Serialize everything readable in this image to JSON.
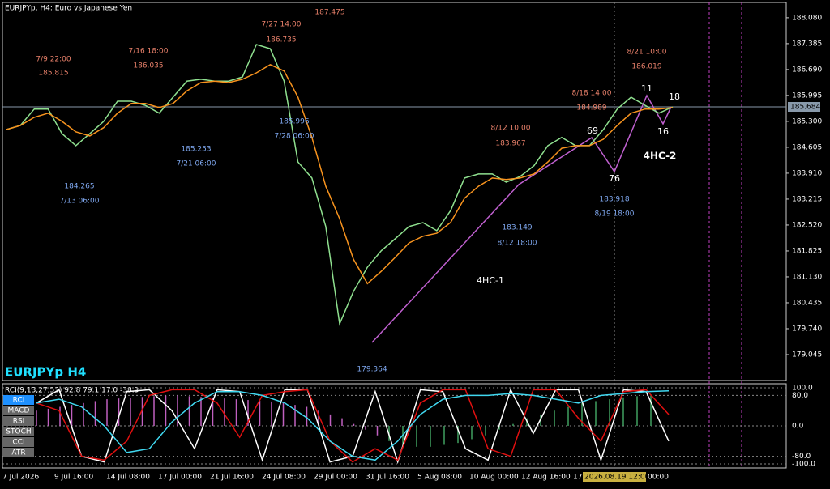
{
  "header": {
    "title": "EURJPYp, H4:  Euro vs Japanese Yen",
    "symbol": "EURJPYp H4",
    "current_price": "185.684"
  },
  "chart_data": {
    "type": "line",
    "ylim": [
      178.35,
      188.49
    ],
    "yticks": [
      {
        "value": 188.08,
        "label": "188.080"
      },
      187.385,
      {
        "value": 186.69,
        "label": "186.690"
      },
      185.995,
      {
        "value": 185.3,
        "label": "185.300"
      },
      184.605,
      {
        "value": 183.91,
        "label": "183.910"
      },
      183.215,
      {
        "value": 182.52,
        "label": "182.520"
      },
      181.825,
      {
        "value": 181.13,
        "label": "181.130"
      },
      180.435,
      {
        "value": 179.74,
        "label": "179.740"
      },
      179.045
    ],
    "series": [
      {
        "color": "#8fe08f",
        "values": [
          185.08,
          185.19,
          185.63,
          185.63,
          184.97,
          184.65,
          184.97,
          185.3,
          185.84,
          185.84,
          185.73,
          185.52,
          185.95,
          186.38,
          186.43,
          186.38,
          186.38,
          186.49,
          187.36,
          187.25,
          186.38,
          184.21,
          183.78,
          182.48,
          179.87,
          180.74,
          181.39,
          181.83,
          182.15,
          182.48,
          182.585,
          182.37,
          182.91,
          183.78,
          183.89,
          183.89,
          183.67,
          183.82,
          184.11,
          184.65,
          184.87,
          184.65,
          184.65,
          185.08,
          185.63,
          185.95,
          185.73,
          185.52,
          185.69
        ]
      },
      {
        "color": "#f7931e",
        "values": [
          185.08,
          185.19,
          185.41,
          185.52,
          185.3,
          185.02,
          184.91,
          185.13,
          185.52,
          185.78,
          185.78,
          185.67,
          185.78,
          186.12,
          186.34,
          186.38,
          186.34,
          186.43,
          186.6,
          186.82,
          186.65,
          185.95,
          184.87,
          183.56,
          182.69,
          181.6,
          180.95,
          181.28,
          181.65,
          182.04,
          182.22,
          182.3,
          182.59,
          183.24,
          183.56,
          183.78,
          183.74,
          183.78,
          183.89,
          184.21,
          184.58,
          184.65,
          184.65,
          184.82,
          185.19,
          185.52,
          185.63,
          185.63,
          185.67
        ]
      }
    ],
    "x_labels": [
      "7 Jul 2026",
      "9 Jul 16:00",
      "14 Jul 08:00",
      "17 Jul 00:00",
      "21 Jul 16:00",
      "24 Jul 08:00",
      "29 Jul 00:00",
      "31 Jul 16:00",
      "5 Aug 08:00",
      "10 Aug 00:00",
      "12 Aug 16:00",
      "17"
    ],
    "x_highlight": "2026.08.19 12:00",
    "x_last": "00:00",
    "annotations": [
      {
        "text": "7/9 22:00",
        "color": "#e8806a"
      },
      {
        "text": "185.815",
        "color": "#e8806a"
      },
      {
        "text": "7/16 18:00",
        "color": "#e8806a"
      },
      {
        "text": "186.035",
        "color": "#e8806a"
      },
      {
        "text": "7/27 14:00",
        "color": "#e8806a"
      },
      {
        "text": "186.735",
        "color": "#e8806a"
      },
      {
        "text": "187.475",
        "color": "#e8806a"
      },
      {
        "text": "185.996",
        "color": "#7fa8f0"
      },
      {
        "text": "7/28 06:00",
        "color": "#7fa8f0"
      },
      {
        "text": "185.253",
        "color": "#7fa8f0"
      },
      {
        "text": "7/21 06:00",
        "color": "#7fa8f0"
      },
      {
        "text": "184.265",
        "color": "#7fa8f0"
      },
      {
        "text": "7/13 06:00",
        "color": "#7fa8f0"
      },
      {
        "text": "179.364",
        "color": "#7fa8f0"
      },
      {
        "text": "183.149",
        "color": "#7fa8f0"
      },
      {
        "text": "8/12 18:00",
        "color": "#7fa8f0"
      },
      {
        "text": "8/12 10:00",
        "color": "#e8806a"
      },
      {
        "text": "183.967",
        "color": "#e8806a"
      },
      {
        "text": "8/18 14:00",
        "color": "#e8806a"
      },
      {
        "text": "184.989",
        "color": "#e8806a"
      },
      {
        "text": "8/21 10:00",
        "color": "#e8806a"
      },
      {
        "text": "186.019",
        "color": "#e8806a"
      },
      {
        "text": "183.918",
        "color": "#7fa8f0"
      },
      {
        "text": "8/19 18:00",
        "color": "#7fa8f0"
      },
      {
        "text": "69",
        "color": "#ffffff"
      },
      {
        "text": "76",
        "color": "#ffffff"
      },
      {
        "text": "11",
        "color": "#ffffff"
      },
      {
        "text": "16",
        "color": "#ffffff"
      },
      {
        "text": "18",
        "color": "#ffffff"
      },
      {
        "text": "4HC-1",
        "color": "#ffffff"
      },
      {
        "text": "4HC-2",
        "color": "#ffffff"
      }
    ]
  },
  "indicator": {
    "header": "RCI(9,13,27,53) 92.8 79.1 17.0 -38.3",
    "buttons": [
      "RCI",
      "MACD",
      "RSI",
      "STOCH",
      "CCI",
      "ATR"
    ],
    "ylim": [
      -100,
      100
    ],
    "yticks": [
      {
        "value": 100,
        "label": "100.0"
      },
      {
        "value": 80,
        "label": "80.0"
      },
      {
        "value": 0,
        "label": "0.0"
      },
      {
        "value": -80,
        "label": "-80.0"
      },
      {
        "value": -100,
        "label": "-100.0"
      }
    ],
    "lines": [
      {
        "color": "#ffffff",
        "values": [
          60,
          95,
          -80,
          -95,
          90,
          95,
          40,
          -60,
          95,
          90,
          -90,
          95,
          95,
          -95,
          -80,
          90,
          -95,
          95,
          90,
          -60,
          -90,
          95,
          -20,
          95,
          95,
          -90,
          95,
          90,
          -40
        ]
      },
      {
        "color": "#e01010",
        "values": [
          60,
          40,
          -80,
          -90,
          -40,
          80,
          95,
          95,
          60,
          -30,
          80,
          90,
          95,
          -40,
          -95,
          -60,
          -90,
          60,
          95,
          95,
          -60,
          -80,
          95,
          95,
          20,
          -40,
          90,
          95,
          30
        ]
      },
      {
        "color": "#40d8f0",
        "values": [
          60,
          70,
          50,
          0,
          -70,
          -60,
          10,
          60,
          90,
          90,
          80,
          60,
          20,
          -40,
          -80,
          -90,
          -40,
          30,
          70,
          80,
          80,
          85,
          80,
          70,
          60,
          80,
          85,
          90,
          92
        ]
      }
    ],
    "histogram": [
      {
        "color": "#c060c0",
        "values": [
          40,
          45,
          50,
          55,
          60,
          65,
          70,
          72,
          74,
          76,
          78,
          80,
          80,
          78,
          76,
          74,
          72,
          70,
          68,
          66,
          64,
          60,
          55,
          50,
          40,
          30,
          20,
          5,
          -10,
          -25
        ]
      },
      {
        "color": "#40a060",
        "values": [
          -40,
          -50,
          -55,
          -55,
          -50,
          -45,
          -35,
          -25,
          -10,
          5,
          20,
          30,
          40,
          50,
          60,
          65,
          70,
          75,
          78,
          80
        ]
      }
    ]
  }
}
